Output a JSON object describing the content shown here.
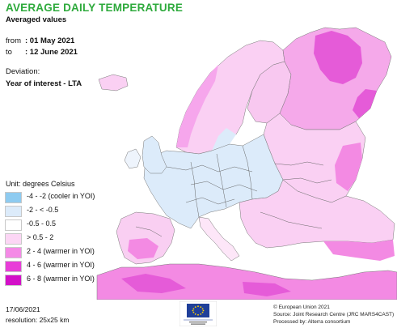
{
  "header": {
    "title": "AVERAGE DAILY TEMPERATURE",
    "subtitle": "Averaged values",
    "from_label": "from",
    "from_value": ": 01 May 2021",
    "to_label": "to",
    "to_value": ": 12 June 2021",
    "deviation_label": "Deviation:",
    "comparison": "Year of interest - LTA"
  },
  "legend": {
    "unit": "Unit: degrees Celsius",
    "items": [
      {
        "label": "-4 - -2 (cooler in YOI)",
        "color": "#8ecbf0"
      },
      {
        "label": "-2 - < -0.5",
        "color": "#dcebfa"
      },
      {
        "label": "-0.5 - 0.5",
        "color": "#ffffff"
      },
      {
        "label": "> 0.5 - 2",
        "color": "#fcd6f5"
      },
      {
        "label": "2 - 4 (warmer in YOI)",
        "color": "#f48ae6"
      },
      {
        "label": "4 - 6 (warmer in YOI)",
        "color": "#e83dd8"
      },
      {
        "label": "6 - 8 (warmer in YOI)",
        "color": "#d310c8"
      }
    ]
  },
  "footer": {
    "date": "17/06/2021",
    "resolution": "resolution: 25x25 km",
    "copyright": "© European Union 2021",
    "source": "Source: Joint Research Centre (JRC MARS4CAST)",
    "processed": "Processed by: Alterra consortium",
    "logo_text": "European Commission"
  },
  "colors": {
    "title_green": "#2eaa3c",
    "sea": "#ffffff",
    "border": "#555555"
  }
}
